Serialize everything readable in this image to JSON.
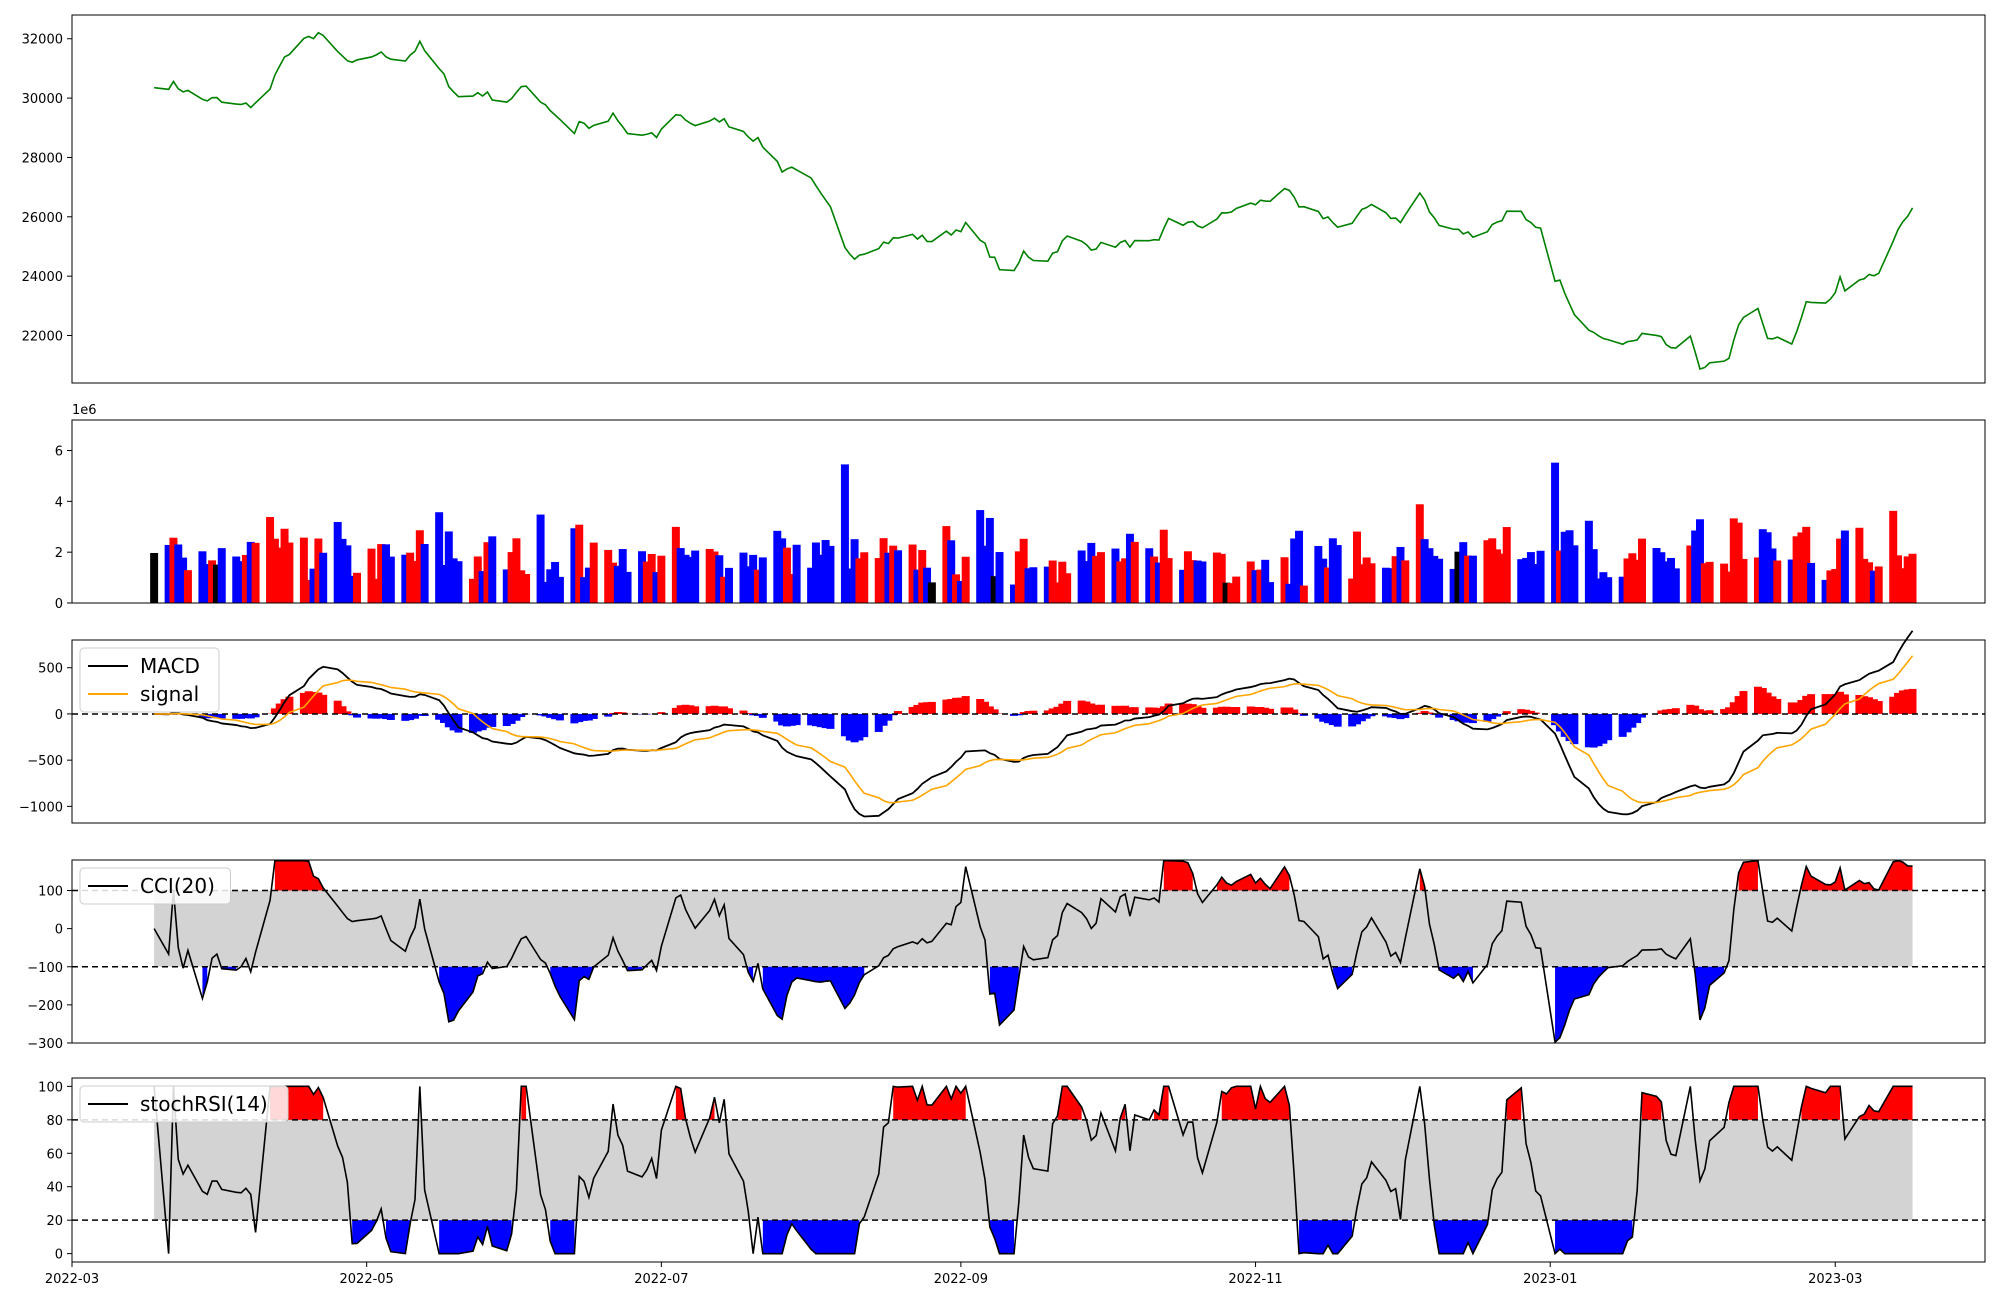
{
  "chart_data": [
    {
      "type": "line",
      "panel": "price",
      "x_start": "2022-03-18",
      "x_end": "2023-03-17",
      "ylim": [
        20400,
        32800
      ],
      "yticks": [
        22000,
        24000,
        26000,
        28000,
        30000,
        32000
      ],
      "line_color": "#008000",
      "knots": [
        [
          "2022-03-18",
          30350
        ],
        [
          "2022-03-22",
          30450
        ],
        [
          "2022-03-28",
          29950
        ],
        [
          "2022-03-31",
          29950
        ],
        [
          "2022-04-02",
          29750
        ],
        [
          "2022-04-07",
          29750
        ],
        [
          "2022-04-11",
          30250
        ],
        [
          "2022-04-13",
          31200
        ],
        [
          "2022-04-18",
          31900
        ],
        [
          "2022-04-21",
          32200
        ],
        [
          "2022-04-23",
          31800
        ],
        [
          "2022-04-28",
          31100
        ],
        [
          "2022-05-03",
          31500
        ],
        [
          "2022-05-09",
          31300
        ],
        [
          "2022-05-12",
          31800
        ],
        [
          "2022-05-18",
          30500
        ],
        [
          "2022-05-21",
          29800
        ],
        [
          "2022-05-24",
          30200
        ],
        [
          "2022-05-30",
          29900
        ],
        [
          "2022-06-03",
          30400
        ],
        [
          "2022-06-07",
          29800
        ],
        [
          "2022-06-10",
          29300
        ],
        [
          "2022-06-12",
          28500
        ],
        [
          "2022-06-14",
          29200
        ],
        [
          "2022-06-18",
          28900
        ],
        [
          "2022-06-21",
          29400
        ],
        [
          "2022-06-24",
          28800
        ],
        [
          "2022-06-30",
          28700
        ],
        [
          "2022-07-04",
          29500
        ],
        [
          "2022-07-09",
          29000
        ],
        [
          "2022-07-13",
          29300
        ],
        [
          "2022-07-18",
          28900
        ],
        [
          "2022-07-23",
          28300
        ],
        [
          "2022-07-26",
          27600
        ],
        [
          "2022-07-30",
          27700
        ],
        [
          "2022-08-03",
          26700
        ],
        [
          "2022-08-06",
          26000
        ],
        [
          "2022-08-08",
          24900
        ],
        [
          "2022-08-10",
          24700
        ],
        [
          "2022-08-14",
          25000
        ],
        [
          "2022-08-21",
          25400
        ],
        [
          "2022-08-26",
          25200
        ],
        [
          "2022-09-02",
          25700
        ],
        [
          "2022-09-06",
          25000
        ],
        [
          "2022-09-09",
          24300
        ],
        [
          "2022-09-11",
          23700
        ],
        [
          "2022-09-14",
          24800
        ],
        [
          "2022-09-18",
          24400
        ],
        [
          "2022-09-23",
          25300
        ],
        [
          "2022-09-28",
          25000
        ],
        [
          "2022-10-05",
          25100
        ],
        [
          "2022-10-12",
          25100
        ],
        [
          "2022-10-15",
          26400
        ],
        [
          "2022-10-16",
          25800
        ],
        [
          "2022-10-21",
          25700
        ],
        [
          "2022-10-27",
          26200
        ],
        [
          "2022-11-04",
          26600
        ],
        [
          "2022-11-07",
          27000
        ],
        [
          "2022-11-10",
          26300
        ],
        [
          "2022-11-17",
          25900
        ],
        [
          "2022-11-19",
          25400
        ],
        [
          "2022-11-25",
          26500
        ],
        [
          "2022-12-01",
          25800
        ],
        [
          "2022-12-05",
          26800
        ],
        [
          "2022-12-08",
          25900
        ],
        [
          "2022-12-14",
          25500
        ],
        [
          "2022-12-17",
          25300
        ],
        [
          "2022-12-20",
          25700
        ],
        [
          "2022-12-25",
          26400
        ],
        [
          "2022-12-27",
          25800
        ],
        [
          "2022-12-30",
          25500
        ],
        [
          "2023-01-01",
          24100
        ],
        [
          "2023-01-03",
          23800
        ],
        [
          "2023-01-06",
          22600
        ],
        [
          "2023-01-09",
          22300
        ],
        [
          "2023-01-12",
          22000
        ],
        [
          "2023-01-15",
          21900
        ],
        [
          "2023-01-18",
          21700
        ],
        [
          "2023-01-21",
          22400
        ],
        [
          "2023-01-26",
          21600
        ],
        [
          "2023-01-28",
          21300
        ],
        [
          "2023-01-30",
          22000
        ],
        [
          "2023-02-01",
          20800
        ],
        [
          "2023-02-03",
          21100
        ],
        [
          "2023-02-07",
          21300
        ],
        [
          "2023-02-10",
          22700
        ],
        [
          "2023-02-12",
          23200
        ],
        [
          "2023-02-15",
          22000
        ],
        [
          "2023-02-20",
          21800
        ],
        [
          "2023-02-23",
          23100
        ],
        [
          "2023-02-28",
          23100
        ],
        [
          "2023-03-02",
          24000
        ],
        [
          "2023-03-04",
          23100
        ],
        [
          "2023-03-06",
          24000
        ],
        [
          "2023-03-11",
          24200
        ],
        [
          "2023-03-14",
          25500
        ],
        [
          "2023-03-17",
          26300
        ]
      ],
      "title": "",
      "xlabel": "",
      "ylabel": ""
    },
    {
      "type": "bar",
      "panel": "volume",
      "ylim": [
        0,
        7200000
      ],
      "yticks": [
        0,
        2,
        4,
        6
      ],
      "scale_label": "1e6",
      "colors": {
        "up": "#ff0000",
        "down": "#0000ff",
        "flat": "#000000"
      }
    },
    {
      "type": "line",
      "panel": "macd",
      "ylim": [
        -1180,
        800
      ],
      "yticks": [
        500,
        0,
        -500,
        -1000
      ],
      "series": [
        {
          "name": "MACD",
          "color": "#000000"
        },
        {
          "name": "signal",
          "color": "#ffa500"
        }
      ],
      "histogram_colors": {
        "positive": "#ff0000",
        "negative": "#0000ff"
      },
      "zero_line": "dashed",
      "legend": "upper-left"
    },
    {
      "type": "area",
      "panel": "cci",
      "ylim": [
        -300,
        180
      ],
      "yticks": [
        100,
        0,
        -100,
        -200,
        -300
      ],
      "series": [
        {
          "name": "CCI(20)",
          "color": "#000000"
        }
      ],
      "thresholds": [
        100,
        -100
      ],
      "fill_colors": {
        "above": "#ff0000",
        "below": "#0000ff",
        "band": "#d3d3d3"
      },
      "legend": "upper-left"
    },
    {
      "type": "area",
      "panel": "stochrsi",
      "ylim": [
        -5,
        105
      ],
      "yticks": [
        100,
        80,
        60,
        40,
        20,
        0
      ],
      "series": [
        {
          "name": "stochRSI(14)",
          "color": "#000000"
        }
      ],
      "thresholds": [
        80,
        20
      ],
      "fill_colors": {
        "above": "#ff0000",
        "below": "#0000ff",
        "band": "#d3d3d3"
      },
      "legend": "upper-left"
    }
  ],
  "xaxis": {
    "range": [
      "2022-03-01",
      "2023-04-01"
    ],
    "ticks": [
      "2022-03",
      "2022-05",
      "2022-07",
      "2022-09",
      "2022-11",
      "2023-01",
      "2023-03"
    ]
  }
}
